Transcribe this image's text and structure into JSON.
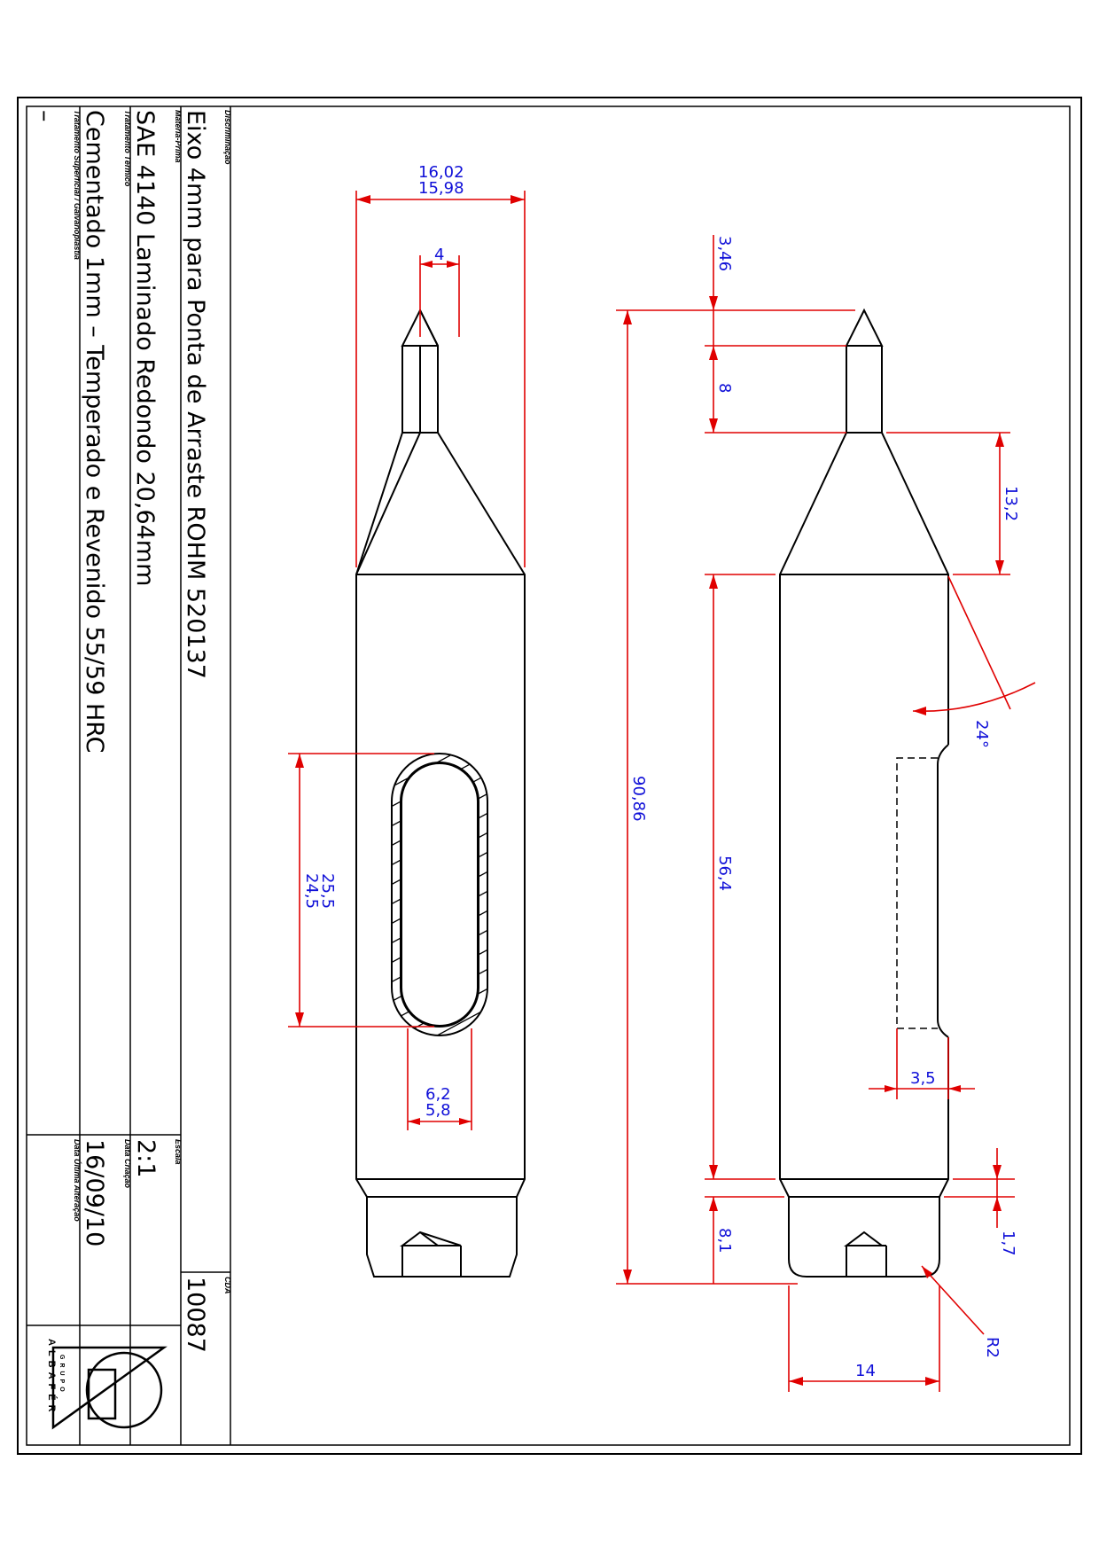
{
  "title_block": {
    "label_descricao": "Discriminação",
    "descricao": "Eixo 4mm para Ponta de Arraste ROHM 520137",
    "label_materia_prima": "Matéria-Prima",
    "materia_prima": "SAE 4140 Laminado Redondo 20,64mm",
    "label_tratamento_termico": "Tratamento Térmico",
    "tratamento_termico": "Cementado 1mm – Temperado e Revenido 55/59 HRC",
    "label_tratamento_superficial": "Tratamento Superficial / Galvanoplastia",
    "tratamento_superficial": "–",
    "label_cda": "CDA",
    "cda": "10087",
    "label_escala": "Escala",
    "escala": "2:1",
    "label_data_criacao": "Data Criação",
    "data_criacao": "16/09/10",
    "label_data_ultima_alteracao": "Data Última Alteração",
    "data_ultima_alteracao": "",
    "logo_text": "ALBAFÉR",
    "logo_group": "GRUPO"
  },
  "dimensions": {
    "width_max": "16,02",
    "width_min": "15,98",
    "tip_width": "4",
    "slot_len_max": "25,5",
    "slot_len_min": "24,5",
    "slot_w_max": "6,2",
    "slot_w_min": "5,8",
    "tip_cone": "3,46",
    "tip_len": "8",
    "cone_len": "13,2",
    "total_len": "90,86",
    "body_len": "56,4",
    "angle": "24°",
    "flat_depth": "3,5",
    "chamfer": "1,7",
    "end_len": "8,1",
    "radius": "R2",
    "end_width": "14"
  },
  "colors": {
    "dimension_line": "#e00000",
    "dimension_text": "#1010d8",
    "outline": "#000000"
  }
}
